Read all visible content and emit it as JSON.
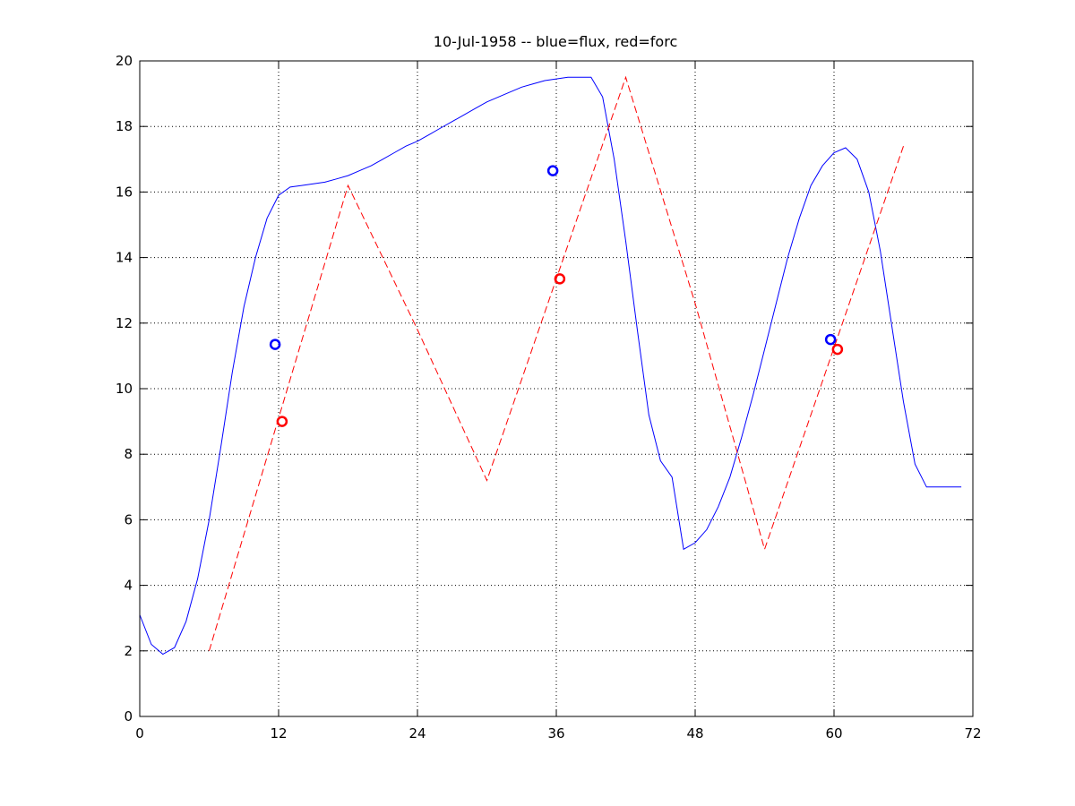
{
  "chart_data": {
    "type": "line",
    "title": "10-Jul-1958 -- blue=flux, red=forc",
    "xlabel": "",
    "ylabel": "",
    "xlim": [
      0,
      72
    ],
    "ylim": [
      0,
      20
    ],
    "xticks": [
      0,
      12,
      24,
      36,
      48,
      60,
      72
    ],
    "yticks": [
      0,
      2,
      4,
      6,
      8,
      10,
      12,
      14,
      16,
      18,
      20
    ],
    "grid": true,
    "series": [
      {
        "color": "#0000ff",
        "style": "solid",
        "x": [
          0,
          1,
          2,
          3,
          4,
          5,
          6,
          7,
          8,
          9,
          10,
          11,
          12,
          13,
          14,
          15,
          16,
          17,
          18,
          19,
          20,
          21,
          22,
          23,
          24,
          25,
          26,
          27,
          28,
          29,
          30,
          31,
          32,
          33,
          34,
          35,
          36,
          37,
          38,
          39,
          40,
          41,
          42,
          43,
          44,
          45,
          46,
          47,
          48,
          49,
          50,
          51,
          52,
          53,
          54,
          55,
          56,
          57,
          58,
          59,
          60,
          61,
          62,
          63,
          64,
          65,
          66,
          67,
          68,
          69,
          70,
          71
        ],
        "y": [
          3.1,
          2.2,
          1.9,
          2.1,
          2.9,
          4.2,
          6.0,
          8.2,
          10.5,
          12.5,
          14.0,
          15.2,
          15.9,
          16.15,
          16.2,
          16.25,
          16.3,
          16.4,
          16.5,
          16.65,
          16.8,
          17.0,
          17.2,
          17.4,
          17.55,
          17.75,
          17.95,
          18.15,
          18.35,
          18.55,
          18.75,
          18.9,
          19.05,
          19.2,
          19.3,
          19.4,
          19.45,
          19.5,
          19.5,
          19.5,
          18.9,
          17.0,
          14.5,
          11.8,
          9.2,
          7.8,
          7.3,
          5.1,
          5.3,
          5.7,
          6.4,
          7.3,
          8.5,
          9.8,
          11.2,
          12.6,
          14.0,
          15.2,
          16.2,
          16.8,
          17.2,
          17.35,
          17.0,
          16.0,
          14.2,
          11.9,
          9.6,
          7.7,
          7.0,
          7.0,
          7.0,
          7.0
        ]
      },
      {
        "color": "#ff0000",
        "style": "dashed",
        "x": [
          6,
          18,
          24,
          30,
          42,
          48,
          54,
          66
        ],
        "y": [
          2.0,
          16.2,
          11.8,
          7.2,
          19.5,
          12.6,
          5.1,
          17.4
        ]
      }
    ],
    "markers": [
      {
        "color": "#0000ff",
        "x": 11.7,
        "y": 11.35
      },
      {
        "color": "#ff0000",
        "x": 12.3,
        "y": 9.0
      },
      {
        "color": "#0000ff",
        "x": 35.7,
        "y": 16.65
      },
      {
        "color": "#ff0000",
        "x": 36.3,
        "y": 13.35
      },
      {
        "color": "#0000ff",
        "x": 59.7,
        "y": 11.5
      },
      {
        "color": "#ff0000",
        "x": 60.3,
        "y": 11.2
      }
    ]
  }
}
